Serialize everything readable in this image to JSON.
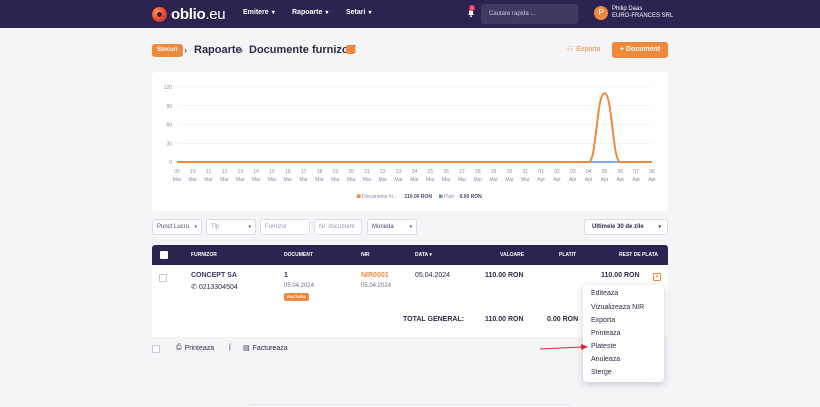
{
  "header": {
    "logo_text": "oblio",
    "logo_suffix": ".eu",
    "nav": [
      "Emitere",
      "Rapoarte",
      "Setari"
    ],
    "notification_count": "1",
    "search_placeholder": "Cautare rapida ...",
    "user": {
      "initial": "P",
      "name": "Philip Daas",
      "company": "EURO-FRANCES SRL"
    }
  },
  "breadcrumb": {
    "section": "Stocuri",
    "parent": "Rapoarte",
    "current": "Documente furnizori"
  },
  "actions": {
    "export": "Exporta",
    "document": "+ Document"
  },
  "colors": {
    "accent": "#ef8a3d",
    "navy": "#2c2350",
    "series_documents": "#ef8a3d",
    "series_payments": "#5b8fd6"
  },
  "chart_data": {
    "type": "line",
    "title": "",
    "xlabel": "",
    "ylabel": "",
    "ylim": [
      0,
      120
    ],
    "yticks": [
      0,
      30,
      60,
      90,
      120
    ],
    "x": [
      [
        "09",
        "Mar"
      ],
      [
        "10",
        "Mar"
      ],
      [
        "11",
        "Mar"
      ],
      [
        "12",
        "Mar"
      ],
      [
        "13",
        "Mar"
      ],
      [
        "14",
        "Mar"
      ],
      [
        "15",
        "Mar"
      ],
      [
        "16",
        "Mar"
      ],
      [
        "17",
        "Mar"
      ],
      [
        "18",
        "Mar"
      ],
      [
        "19",
        "Mar"
      ],
      [
        "20",
        "Mar"
      ],
      [
        "21",
        "Mar"
      ],
      [
        "22",
        "Mar"
      ],
      [
        "23",
        "Mar"
      ],
      [
        "24",
        "Mar"
      ],
      [
        "25",
        "Mar"
      ],
      [
        "26",
        "Mar"
      ],
      [
        "27",
        "Mar"
      ],
      [
        "28",
        "Mar"
      ],
      [
        "29",
        "Mar"
      ],
      [
        "30",
        "Mar"
      ],
      [
        "31",
        "Mar"
      ],
      [
        "01",
        "Apr"
      ],
      [
        "02",
        "Apr"
      ],
      [
        "03",
        "Apr"
      ],
      [
        "04",
        "Apr"
      ],
      [
        "05",
        "Apr"
      ],
      [
        "06",
        "Apr"
      ],
      [
        "07",
        "Apr"
      ],
      [
        "08",
        "Apr"
      ]
    ],
    "series": [
      {
        "name": "Documente fu...",
        "total": "110.00 RON",
        "color": "#ef8a3d",
        "values": [
          0,
          0,
          0,
          0,
          0,
          0,
          0,
          0,
          0,
          0,
          0,
          0,
          0,
          0,
          0,
          0,
          0,
          0,
          0,
          0,
          0,
          0,
          0,
          0,
          0,
          0,
          0,
          110,
          0,
          0,
          0
        ]
      },
      {
        "name": "Plati",
        "total": "0.00 RON",
        "color": "#5b8fd6",
        "values": [
          0,
          0,
          0,
          0,
          0,
          0,
          0,
          0,
          0,
          0,
          0,
          0,
          0,
          0,
          0,
          0,
          0,
          0,
          0,
          0,
          0,
          0,
          0,
          0,
          0,
          0,
          0,
          0,
          0,
          0,
          0
        ]
      }
    ],
    "grid": true,
    "legend": "bottom-center"
  },
  "filters": {
    "punct_lucru": "Punct Lucru",
    "tip": "Tip",
    "furnizor": "Furnizor",
    "nr_document": "Nr. document",
    "moneda": "Moneda",
    "range": "Ultimele 30 de zile"
  },
  "table": {
    "columns": [
      "FURNIZOR",
      "DOCUMENT",
      "NIR",
      "DATA",
      "VALOARE",
      "PLATIT",
      "REST DE PLATA"
    ],
    "row": {
      "supplier": "CONCEPT SA",
      "phone": "0213304504",
      "document": "1",
      "document_date": "05.04.2024",
      "document_badge": "FACTURA",
      "nir": "NIR0001",
      "nir_date": "05.04.2024",
      "date": "05.04.2024",
      "value": "110.00 RON",
      "rest": "110.00 RON"
    },
    "total": {
      "label": "TOTAL GENERAL:",
      "value": "110.00 RON",
      "paid": "0.00 RON"
    }
  },
  "footer": {
    "print": "Printeaza",
    "invoice": "Factureaza"
  },
  "dropdown": [
    "Editeaza",
    "Vizualizeaza NIR",
    "Exporta",
    "Printeaza",
    "Plateste",
    "Anuleaza",
    "Sterge"
  ]
}
